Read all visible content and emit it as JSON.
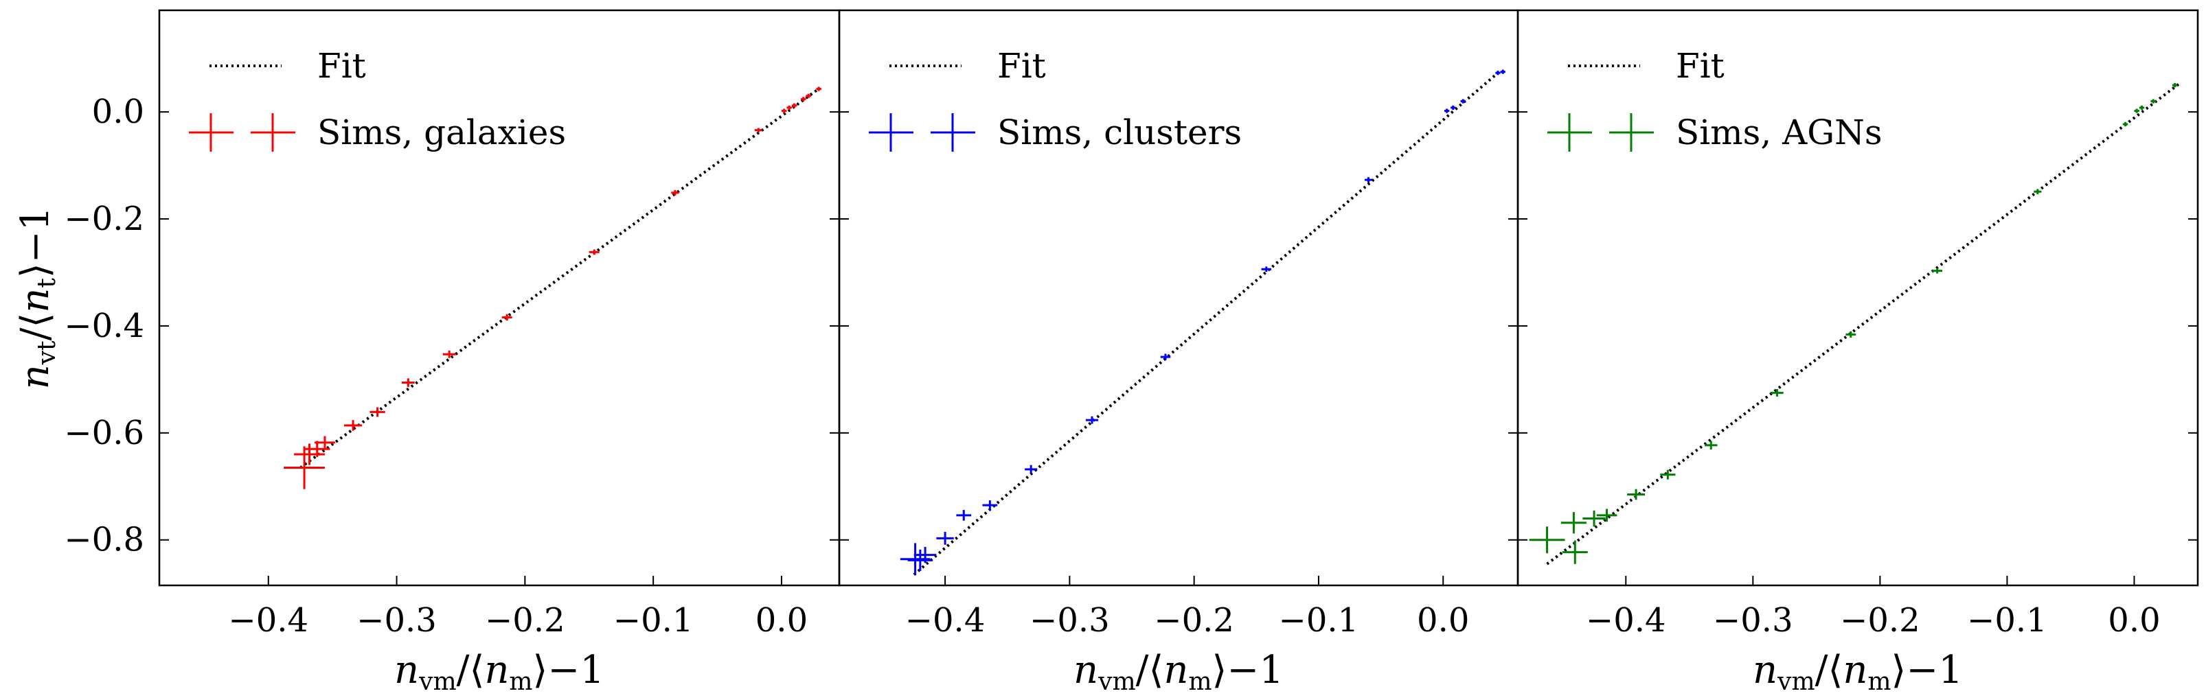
{
  "chart_data": [
    {
      "type": "scatter",
      "panel": "galaxies",
      "xlabel": "n_vm/⟨n_m⟩−1",
      "ylabel": "n_vt/⟨n_t⟩−1",
      "xlim": [
        -0.485,
        0.045
      ],
      "ylim": [
        -0.885,
        0.19
      ],
      "xticks": [
        -0.4,
        -0.3,
        -0.2,
        -0.1,
        0.0
      ],
      "xtick_labels": [
        "−0.4",
        "−0.3",
        "−0.2",
        "−0.1",
        "0.0"
      ],
      "yticks": [
        -0.8,
        -0.6,
        -0.4,
        -0.2,
        0.0
      ],
      "ytick_labels": [
        "−0.8",
        "−0.6",
        "−0.4",
        "−0.2",
        "0.0"
      ],
      "legend": {
        "placement": "top-left",
        "entries": [
          "Fit",
          "Sims, galaxies"
        ]
      },
      "color": "#ff0000",
      "fit": {
        "x": [
          -0.375,
          0.03
        ],
        "y": [
          -0.665,
          0.045
        ]
      },
      "series": [
        {
          "name": "Sims, galaxies",
          "points": [
            {
              "x": -0.372,
              "y": -0.665,
              "xerr": 0.016,
              "yerr": 0.04
            },
            {
              "x": -0.368,
              "y": -0.64,
              "xerr": 0.012,
              "yerr": 0.02
            },
            {
              "x": -0.362,
              "y": -0.63,
              "xerr": 0.01,
              "yerr": 0.015
            },
            {
              "x": -0.356,
              "y": -0.618,
              "xerr": 0.008,
              "yerr": 0.012
            },
            {
              "x": -0.334,
              "y": -0.586,
              "xerr": 0.007,
              "yerr": 0.01
            },
            {
              "x": -0.315,
              "y": -0.561,
              "xerr": 0.006,
              "yerr": 0.009
            },
            {
              "x": -0.291,
              "y": -0.506,
              "xerr": 0.005,
              "yerr": 0.008
            },
            {
              "x": -0.259,
              "y": -0.453,
              "xerr": 0.005,
              "yerr": 0.007
            },
            {
              "x": -0.214,
              "y": -0.384,
              "xerr": 0.004,
              "yerr": 0.006
            },
            {
              "x": -0.146,
              "y": -0.262,
              "xerr": 0.004,
              "yerr": 0.005
            },
            {
              "x": -0.083,
              "y": -0.151,
              "xerr": 0.003,
              "yerr": 0.005
            },
            {
              "x": -0.018,
              "y": -0.034,
              "xerr": 0.003,
              "yerr": 0.004
            },
            {
              "x": 0.002,
              "y": 0.002,
              "xerr": 0.002,
              "yerr": 0.004
            },
            {
              "x": 0.006,
              "y": 0.008,
              "xerr": 0.002,
              "yerr": 0.004
            },
            {
              "x": 0.01,
              "y": 0.012,
              "xerr": 0.002,
              "yerr": 0.004
            },
            {
              "x": 0.017,
              "y": 0.024,
              "xerr": 0.002,
              "yerr": 0.004
            },
            {
              "x": 0.021,
              "y": 0.03,
              "xerr": 0.002,
              "yerr": 0.004
            },
            {
              "x": 0.029,
              "y": 0.043,
              "xerr": 0.002,
              "yerr": 0.004
            }
          ]
        }
      ]
    },
    {
      "type": "scatter",
      "panel": "clusters",
      "xlabel": "n_vm/⟨n_m⟩−1",
      "ylabel": "",
      "xlim": [
        -0.485,
        0.06
      ],
      "ylim": [
        -0.885,
        0.19
      ],
      "xticks": [
        -0.4,
        -0.3,
        -0.2,
        -0.1,
        0.0
      ],
      "xtick_labels": [
        "−0.4",
        "−0.3",
        "−0.2",
        "−0.1",
        "0.0"
      ],
      "legend": {
        "placement": "top-left",
        "entries": [
          "Fit",
          "Sims, clusters"
        ]
      },
      "color": "#0000ff",
      "fit": {
        "x": [
          -0.425,
          0.045
        ],
        "y": [
          -0.865,
          0.075
        ]
      },
      "series": [
        {
          "name": "Sims, clusters",
          "points": [
            {
              "x": -0.424,
              "y": -0.836,
              "xerr": 0.012,
              "yerr": 0.03
            },
            {
              "x": -0.42,
              "y": -0.838,
              "xerr": 0.01,
              "yerr": 0.02
            },
            {
              "x": -0.416,
              "y": -0.828,
              "xerr": 0.009,
              "yerr": 0.015
            },
            {
              "x": -0.4,
              "y": -0.797,
              "xerr": 0.007,
              "yerr": 0.012
            },
            {
              "x": -0.385,
              "y": -0.754,
              "xerr": 0.006,
              "yerr": 0.01
            },
            {
              "x": -0.364,
              "y": -0.735,
              "xerr": 0.006,
              "yerr": 0.009
            },
            {
              "x": -0.331,
              "y": -0.668,
              "xerr": 0.005,
              "yerr": 0.008
            },
            {
              "x": -0.282,
              "y": -0.576,
              "xerr": 0.005,
              "yerr": 0.007
            },
            {
              "x": -0.223,
              "y": -0.458,
              "xerr": 0.004,
              "yerr": 0.006
            },
            {
              "x": -0.142,
              "y": -0.294,
              "xerr": 0.004,
              "yerr": 0.005
            },
            {
              "x": -0.06,
              "y": -0.127,
              "xerr": 0.003,
              "yerr": 0.005
            },
            {
              "x": 0.003,
              "y": 0.002,
              "xerr": 0.002,
              "yerr": 0.004
            },
            {
              "x": 0.008,
              "y": 0.008,
              "xerr": 0.002,
              "yerr": 0.004
            },
            {
              "x": 0.016,
              "y": 0.02,
              "xerr": 0.002,
              "yerr": 0.004
            },
            {
              "x": 0.044,
              "y": 0.073,
              "xerr": 0.002,
              "yerr": 0.004
            },
            {
              "x": 0.048,
              "y": 0.075,
              "xerr": 0.002,
              "yerr": 0.004
            }
          ]
        }
      ]
    },
    {
      "type": "scatter",
      "panel": "AGNs",
      "xlabel": "n_vm/⟨n_m⟩−1",
      "ylabel": "",
      "xlim": [
        -0.485,
        0.05
      ],
      "ylim": [
        -0.885,
        0.19
      ],
      "xticks": [
        -0.4,
        -0.3,
        -0.2,
        -0.1,
        0.0
      ],
      "xtick_labels": [
        "−0.4",
        "−0.3",
        "−0.2",
        "−0.1",
        "0.0"
      ],
      "legend": {
        "placement": "top-left",
        "entries": [
          "Fit",
          "Sims, AGNs"
        ]
      },
      "color": "#008000",
      "fit": {
        "x": [
          -0.462,
          0.035
        ],
        "y": [
          -0.845,
          0.052
        ]
      },
      "series": [
        {
          "name": "Sims, AGNs",
          "points": [
            {
              "x": -0.462,
              "y": -0.8,
              "xerr": 0.014,
              "yerr": 0.025
            },
            {
              "x": -0.441,
              "y": -0.768,
              "xerr": 0.01,
              "yerr": 0.02
            },
            {
              "x": -0.44,
              "y": -0.823,
              "xerr": 0.01,
              "yerr": 0.022
            },
            {
              "x": -0.425,
              "y": -0.76,
              "xerr": 0.009,
              "yerr": 0.015
            },
            {
              "x": -0.415,
              "y": -0.754,
              "xerr": 0.008,
              "yerr": 0.012
            },
            {
              "x": -0.392,
              "y": -0.715,
              "xerr": 0.007,
              "yerr": 0.01
            },
            {
              "x": -0.367,
              "y": -0.678,
              "xerr": 0.006,
              "yerr": 0.009
            },
            {
              "x": -0.333,
              "y": -0.623,
              "xerr": 0.005,
              "yerr": 0.008
            },
            {
              "x": -0.281,
              "y": -0.525,
              "xerr": 0.005,
              "yerr": 0.007
            },
            {
              "x": -0.223,
              "y": -0.416,
              "xerr": 0.004,
              "yerr": 0.006
            },
            {
              "x": -0.155,
              "y": -0.297,
              "xerr": 0.004,
              "yerr": 0.005
            },
            {
              "x": -0.076,
              "y": -0.149,
              "xerr": 0.003,
              "yerr": 0.005
            },
            {
              "x": -0.007,
              "y": -0.023,
              "xerr": 0.002,
              "yerr": 0.004
            },
            {
              "x": 0.002,
              "y": 0.002,
              "xerr": 0.002,
              "yerr": 0.004
            },
            {
              "x": 0.006,
              "y": 0.008,
              "xerr": 0.002,
              "yerr": 0.004
            },
            {
              "x": 0.015,
              "y": 0.02,
              "xerr": 0.002,
              "yerr": 0.004
            },
            {
              "x": 0.032,
              "y": 0.05,
              "xerr": 0.002,
              "yerr": 0.004
            }
          ]
        }
      ]
    }
  ]
}
